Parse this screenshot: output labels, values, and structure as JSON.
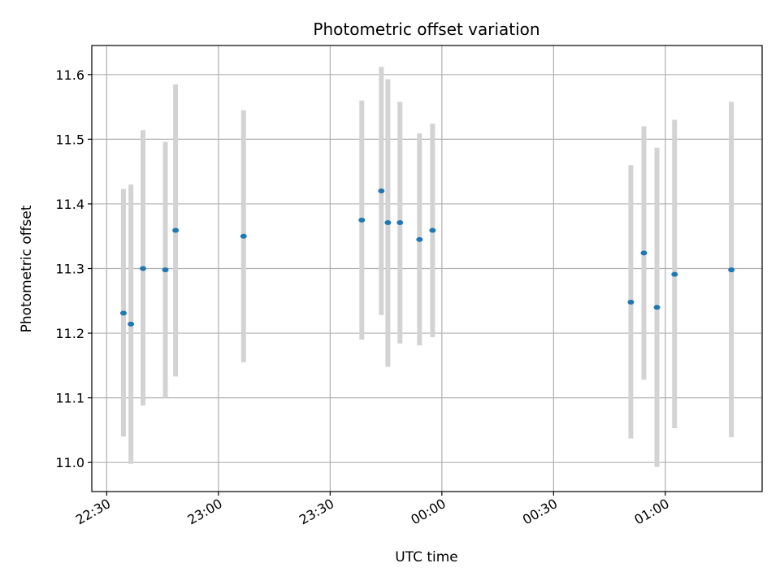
{
  "chart_data": {
    "type": "scatter",
    "title": "Photometric offset variation",
    "xlabel": "UTC time",
    "ylabel": "Photometric offset",
    "grid": true,
    "x_ticks": [
      "22:30",
      "23:00",
      "23:30",
      "00:00",
      "00:30",
      "01:00"
    ],
    "x_tick_values": [
      "22:30",
      "23:00",
      "23:30",
      "00:00",
      "00:30",
      "01:00"
    ],
    "xlim": [
      "22:26",
      "01:26"
    ],
    "ylim": [
      10.955,
      11.645
    ],
    "y_ticks": [
      11.0,
      11.1,
      11.2,
      11.3,
      11.4,
      11.5,
      11.6
    ],
    "colors": {
      "point": "#1f77b4",
      "errorbar": "#d3d3d3",
      "grid": "#b0b0b0"
    },
    "points": [
      {
        "x": "22:34:30",
        "y": 11.231,
        "low": 11.04,
        "high": 11.423
      },
      {
        "x": "22:36:30",
        "y": 11.214,
        "low": 10.998,
        "high": 11.43
      },
      {
        "x": "22:39:45",
        "y": 11.3,
        "low": 11.088,
        "high": 11.514
      },
      {
        "x": "22:45:45",
        "y": 11.298,
        "low": 11.1,
        "high": 11.496
      },
      {
        "x": "22:48:30",
        "y": 11.359,
        "low": 11.133,
        "high": 11.585
      },
      {
        "x": "23:06:45",
        "y": 11.35,
        "low": 11.155,
        "high": 11.545
      },
      {
        "x": "23:38:30",
        "y": 11.375,
        "low": 11.19,
        "high": 11.56
      },
      {
        "x": "23:43:45",
        "y": 11.42,
        "low": 11.228,
        "high": 11.612
      },
      {
        "x": "23:45:30",
        "y": 11.371,
        "low": 11.148,
        "high": 11.593
      },
      {
        "x": "23:48:45",
        "y": 11.371,
        "low": 11.184,
        "high": 11.558
      },
      {
        "x": "23:54:00",
        "y": 11.345,
        "low": 11.181,
        "high": 11.509
      },
      {
        "x": "23:57:30",
        "y": 11.359,
        "low": 11.194,
        "high": 11.524
      },
      {
        "x": "00:50:45",
        "y": 11.248,
        "low": 11.037,
        "high": 11.46
      },
      {
        "x": "00:54:15",
        "y": 11.324,
        "low": 11.128,
        "high": 11.52
      },
      {
        "x": "00:57:45",
        "y": 11.24,
        "low": 10.993,
        "high": 11.487
      },
      {
        "x": "01:02:30",
        "y": 11.291,
        "low": 11.053,
        "high": 11.53
      },
      {
        "x": "01:17:45",
        "y": 11.298,
        "low": 11.039,
        "high": 11.558
      }
    ]
  }
}
